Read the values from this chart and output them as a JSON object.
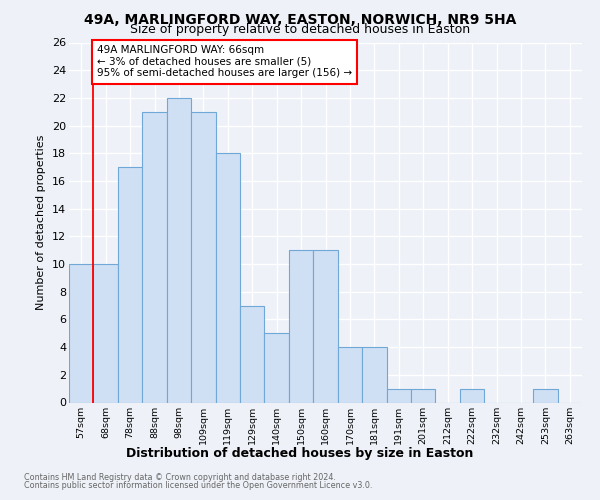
{
  "title1": "49A, MARLINGFORD WAY, EASTON, NORWICH, NR9 5HA",
  "title2": "Size of property relative to detached houses in Easton",
  "xlabel": "Distribution of detached houses by size in Easton",
  "ylabel": "Number of detached properties",
  "categories": [
    "57sqm",
    "68sqm",
    "78sqm",
    "88sqm",
    "98sqm",
    "109sqm",
    "119sqm",
    "129sqm",
    "140sqm",
    "150sqm",
    "160sqm",
    "170sqm",
    "181sqm",
    "191sqm",
    "201sqm",
    "212sqm",
    "222sqm",
    "232sqm",
    "242sqm",
    "253sqm",
    "263sqm"
  ],
  "values": [
    10,
    10,
    17,
    21,
    22,
    21,
    18,
    7,
    5,
    11,
    11,
    4,
    4,
    1,
    1,
    0,
    1,
    0,
    0,
    1,
    0
  ],
  "bar_color": "#cfe0f4",
  "bar_edge_color": "#6fa8d6",
  "annotation_line1": "49A MARLINGFORD WAY: 66sqm",
  "annotation_line2": "← 3% of detached houses are smaller (5)",
  "annotation_line3": "95% of semi-detached houses are larger (156) →",
  "annotation_box_color": "white",
  "annotation_box_edge_color": "red",
  "redline_bar_index": 1,
  "ylim": [
    0,
    26
  ],
  "yticks": [
    0,
    2,
    4,
    6,
    8,
    10,
    12,
    14,
    16,
    18,
    20,
    22,
    24,
    26
  ],
  "footer1": "Contains HM Land Registry data © Crown copyright and database right 2024.",
  "footer2": "Contains public sector information licensed under the Open Government Licence v3.0.",
  "bg_color": "#eef2f8",
  "grid_color": "white",
  "title1_fontsize": 10,
  "title2_fontsize": 9
}
